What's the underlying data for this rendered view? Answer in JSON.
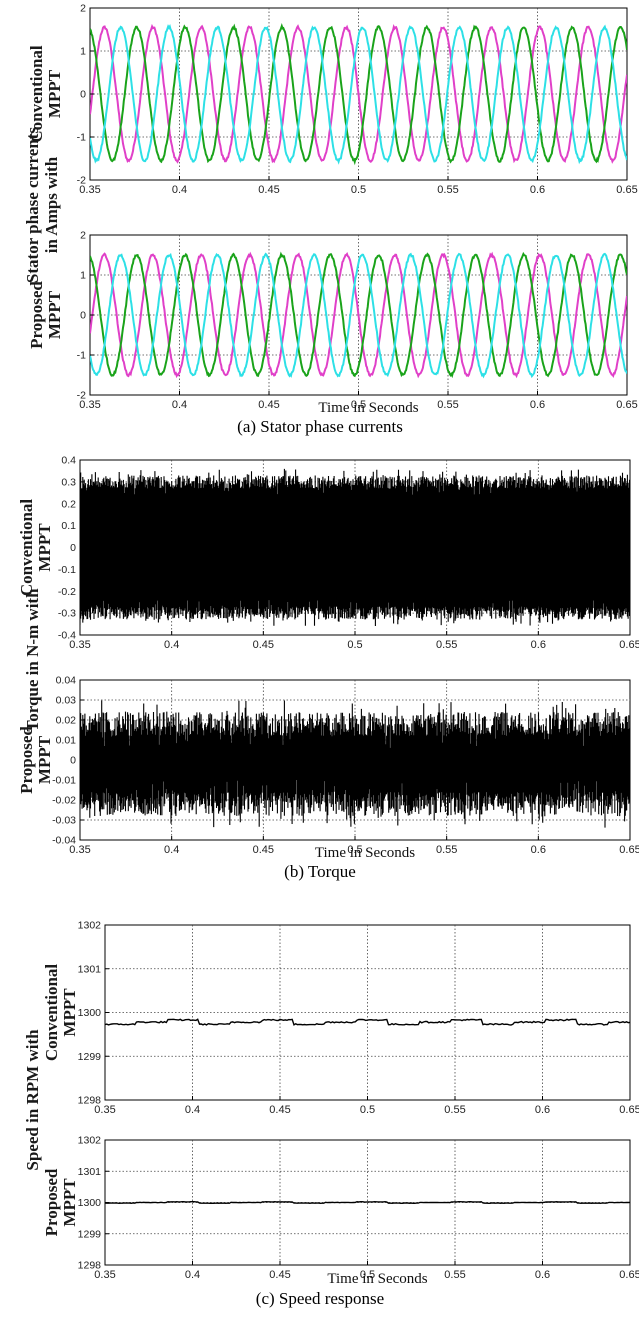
{
  "panels": [
    {
      "group_label_lines": [
        "Stator phase currents",
        "in Amps with"
      ],
      "caption": "(a) Stator phase currents",
      "xlabel": "Time in Seconds",
      "subplots": [
        {
          "row_label_lines": [
            "Conventional",
            "MPPT"
          ]
        },
        {
          "row_label_lines": [
            "Proposed",
            "MPPT"
          ]
        }
      ]
    },
    {
      "group_label_lines": [
        "Torque in N-m with"
      ],
      "caption": "(b) Torque",
      "xlabel": "Time in Seconds",
      "subplots": [
        {
          "row_label_lines": [
            "Conventional",
            "MPPT"
          ]
        },
        {
          "row_label_lines": [
            "Proposed",
            "MPPT"
          ]
        }
      ]
    },
    {
      "group_label_lines": [
        "Speed in RPM with"
      ],
      "caption": "(c) Speed response",
      "xlabel": "Time in Seconds",
      "subplots": [
        {
          "row_label_lines": [
            "Conventional",
            "MPPT"
          ]
        },
        {
          "row_label_lines": [
            "Proposed",
            "MPPT"
          ]
        }
      ]
    }
  ],
  "chart_data": [
    {
      "type": "line",
      "xlim": [
        0.35,
        0.65
      ],
      "ylim": [
        -2,
        2
      ],
      "x_ticks": [
        "0.35",
        "0.4",
        "0.45",
        "0.5",
        "0.55",
        "0.6",
        "0.65"
      ],
      "y_ticks": [
        "2",
        "1",
        "0",
        "-1",
        "-2"
      ],
      "grid": true,
      "signal": {
        "kind": "three-phase-sine",
        "amplitude": 1.55,
        "frequency_hz": 37,
        "colors": [
          "#e040c8",
          "#1aa31a",
          "#2de0e6"
        ]
      }
    },
    {
      "type": "line",
      "xlim": [
        0.35,
        0.65
      ],
      "ylim": [
        -2,
        2
      ],
      "x_ticks": [
        "0.35",
        "0.4",
        "0.45",
        "0.5",
        "0.55",
        "0.6",
        "0.65"
      ],
      "y_ticks": [
        "2",
        "1",
        "0",
        "-1",
        "-2"
      ],
      "grid": true,
      "signal": {
        "kind": "three-phase-sine",
        "amplitude": 1.5,
        "frequency_hz": 37,
        "colors": [
          "#e040c8",
          "#1aa31a",
          "#2de0e6"
        ]
      }
    },
    {
      "type": "area",
      "xlim": [
        0.35,
        0.65
      ],
      "ylim": [
        -0.4,
        0.4
      ],
      "x_ticks": [
        "0.35",
        "0.4",
        "0.45",
        "0.5",
        "0.55",
        "0.6",
        "0.65"
      ],
      "y_ticks": [
        "0.4",
        "0.3",
        "0.2",
        "0.1",
        "0",
        "-0.1",
        "-0.2",
        "-0.3",
        "-0.4"
      ],
      "grid": true,
      "signal": {
        "kind": "noise-band",
        "upper": 0.3,
        "lower": -0.3,
        "spike": 0.06,
        "color": "#000000"
      }
    },
    {
      "type": "area",
      "xlim": [
        0.35,
        0.65
      ],
      "ylim": [
        -0.04,
        0.04
      ],
      "x_ticks": [
        "0.35",
        "0.4",
        "0.45",
        "0.5",
        "0.55",
        "0.6",
        "0.65"
      ],
      "y_ticks": [
        "0.04",
        "0.03",
        "0.02",
        "0.01",
        "0",
        "-0.01",
        "-0.02",
        "-0.03",
        "-0.04"
      ],
      "grid": true,
      "signal": {
        "kind": "noise-band",
        "upper": 0.018,
        "lower": -0.022,
        "spike": 0.012,
        "color": "#000000"
      }
    },
    {
      "type": "line",
      "xlim": [
        0.35,
        0.65
      ],
      "ylim": [
        1298,
        1302
      ],
      "x_ticks": [
        "0.35",
        "0.4",
        "0.45",
        "0.5",
        "0.55",
        "0.6",
        "0.65"
      ],
      "y_ticks": [
        "1302",
        "1301",
        "1300",
        "1299",
        "1298"
      ],
      "grid": true,
      "signal": {
        "kind": "flat",
        "level": 1299.78,
        "ripple": 0.05,
        "color": "#000000"
      }
    },
    {
      "type": "line",
      "xlim": [
        0.35,
        0.65
      ],
      "ylim": [
        1298,
        1302
      ],
      "x_ticks": [
        "0.35",
        "0.4",
        "0.45",
        "0.5",
        "0.55",
        "0.6",
        "0.65"
      ],
      "y_ticks": [
        "1302",
        "1301",
        "1300",
        "1299",
        "1298"
      ],
      "grid": true,
      "signal": {
        "kind": "flat",
        "level": 1300.0,
        "ripple": 0.02,
        "color": "#000000"
      }
    }
  ]
}
